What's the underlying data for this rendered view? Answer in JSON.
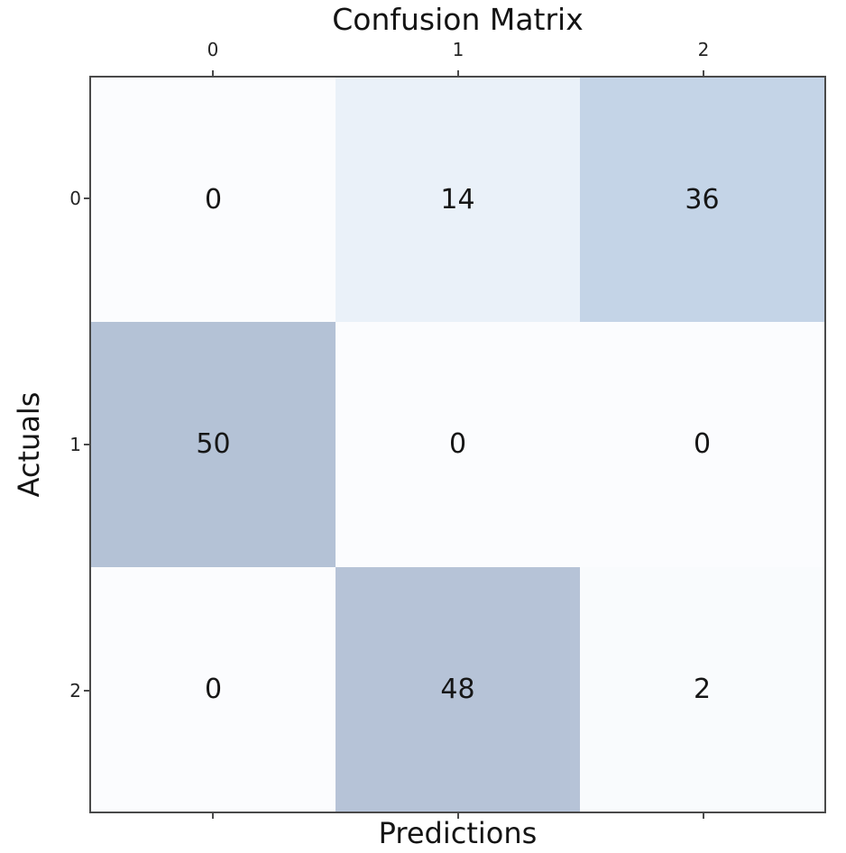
{
  "chart_data": {
    "type": "heatmap",
    "title": "Confusion Matrix",
    "xlabel": "Predictions",
    "ylabel": "Actuals",
    "x_tick_labels": [
      "0",
      "1",
      "2"
    ],
    "y_tick_labels": [
      "0",
      "1",
      "2"
    ],
    "matrix": [
      [
        0,
        14,
        36
      ],
      [
        50,
        0,
        0
      ],
      [
        0,
        48,
        2
      ]
    ],
    "cell_colors": [
      [
        "#fbfcfe",
        "#eaf1f9",
        "#c4d4e7"
      ],
      [
        "#b4c2d6",
        "#fbfcfe",
        "#fbfcfe"
      ],
      [
        "#fbfcfe",
        "#b6c3d7",
        "#f9fbfd"
      ]
    ],
    "value_min": 0,
    "value_max": 50,
    "colormap": "Blues-light",
    "axis_color": "#4a4a4a",
    "text_color": "#161616",
    "legend": "none",
    "grid": "off"
  }
}
